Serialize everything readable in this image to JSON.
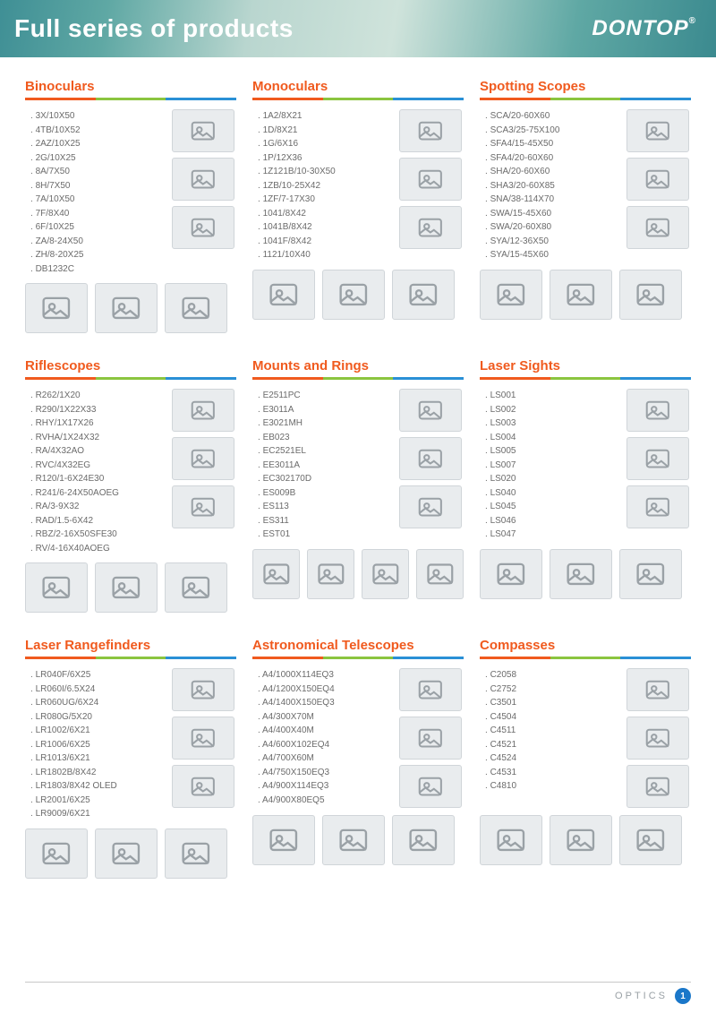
{
  "header": {
    "title": "Full series of products",
    "logo": "DONTOP",
    "logo_mark": "®"
  },
  "underline_colors": [
    "#f05a1e",
    "#8bc53f",
    "#2a90d6"
  ],
  "title_color": "#f05a1e",
  "categories": [
    [
      {
        "title": "Binoculars",
        "items": [
          "3X/10X50",
          "4TB/10X52",
          "2AZ/10X25",
          "2G/10X25",
          "8A/7X50",
          "8H/7X50",
          "7A/10X50",
          "7F/8X40",
          "6F/10X25",
          "ZA/8-24X50",
          "ZH/8-20X25",
          "DB1232C"
        ],
        "side_images": 3,
        "bottom_images": 3
      },
      {
        "title": "Monoculars",
        "items": [
          "1A2/8X21",
          "1D/8X21",
          "1G/6X16",
          "1P/12X36",
          "1Z121B/10-30X50",
          "1ZB/10-25X42",
          "1ZF/7-17X30",
          "1041/8X42",
          "1041B/8X42",
          "1041F/8X42",
          "1121/10X40"
        ],
        "side_images": 3,
        "bottom_images": 3
      },
      {
        "title": "Spotting Scopes",
        "items": [
          "SCA/20-60X60",
          "SCA3/25-75X100",
          "SFA4/15-45X50",
          "SFA4/20-60X60",
          "SHA/20-60X60",
          "SHA3/20-60X85",
          "SNA/38-114X70",
          "SWA/15-45X60",
          "SWA/20-60X80",
          "SYA/12-36X50",
          "SYA/15-45X60"
        ],
        "side_images": 3,
        "bottom_images": 3
      }
    ],
    [
      {
        "title": "Riflescopes",
        "items": [
          "R262/1X20",
          "R290/1X22X33",
          "RHY/1X17X26",
          "RVHA/1X24X32",
          "RA/4X32AO",
          "RVC/4X32EG",
          "R120/1-6X24E30",
          "R241/6-24X50AOEG",
          "RA/3-9X32",
          "RAD/1.5-6X42",
          "RBZ/2-16X50SFE30",
          "RV/4-16X40AOEG"
        ],
        "side_images": 3,
        "bottom_images": 3
      },
      {
        "title": "Mounts and Rings",
        "items": [
          "E2511PC",
          "E3011A",
          "E3021MH",
          "EB023",
          "EC2521EL",
          "EE3011A",
          "EC302170D",
          "ES009B",
          "ES113",
          "ES311",
          "EST01"
        ],
        "side_images": 3,
        "bottom_images": 4
      },
      {
        "title": "Laser Sights",
        "items": [
          "LS001",
          "LS002",
          "LS003",
          "LS004",
          "LS005",
          "LS007",
          "LS020",
          "LS040",
          "LS045",
          "LS046",
          "LS047"
        ],
        "side_images": 3,
        "bottom_images": 3
      }
    ],
    [
      {
        "title": "Laser Rangefinders",
        "items": [
          "LR040F/6X25",
          "LR060I/6.5X24",
          "LR060UG/6X24",
          "LR080G/5X20",
          "LR1002/6X21",
          "LR1006/6X25",
          "LR1013/6X21",
          "LR1802B/8X42",
          "LR1803/8X42 OLED",
          "LR2001/6X25",
          "LR9009/6X21"
        ],
        "side_images": 3,
        "bottom_images": 3
      },
      {
        "title": "Astronomical Telescopes",
        "items": [
          "A4/1000X114EQ3",
          "A4/1200X150EQ4",
          "A4/1400X150EQ3",
          "A4/300X70M",
          "A4/400X40M",
          "A4/600X102EQ4",
          "A4/700X60M",
          "A4/750X150EQ3",
          "A4/900X114EQ3",
          "A4/900X80EQ5"
        ],
        "side_images": 3,
        "bottom_images": 3
      },
      {
        "title": "Compasses",
        "items": [
          "C2058",
          "C2752",
          "C3501",
          "C4504",
          "C4511",
          "C4521",
          "C4524",
          "C4531",
          "C4810"
        ],
        "side_images": 3,
        "bottom_images": 3
      }
    ]
  ],
  "footer": {
    "text": "OPTICS",
    "page_num": "1"
  }
}
